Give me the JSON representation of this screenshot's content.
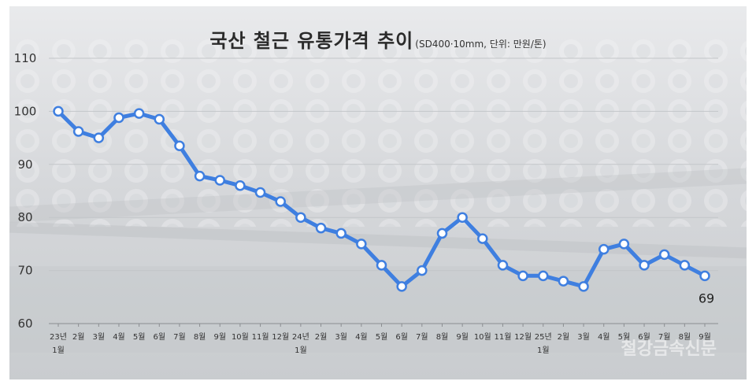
{
  "chart_data": {
    "type": "line",
    "title": "국산 철근 유통가격 추이",
    "subtitle": "(SD400·10mm, 단위: 만원/톤)",
    "ylim": [
      60,
      110
    ],
    "yticks": [
      60,
      70,
      80,
      90,
      100,
      110
    ],
    "grid": true,
    "line_color": "#3f7fe0",
    "marker_fill": "#ffffff",
    "categories": [
      [
        "23년",
        "1월"
      ],
      [
        "2월"
      ],
      [
        "3월"
      ],
      [
        "4월"
      ],
      [
        "5월"
      ],
      [
        "6월"
      ],
      [
        "7월"
      ],
      [
        "8월"
      ],
      [
        "9월"
      ],
      [
        "10월"
      ],
      [
        "11월"
      ],
      [
        "12월"
      ],
      [
        "24년",
        "1월"
      ],
      [
        "2월"
      ],
      [
        "3월"
      ],
      [
        "4월"
      ],
      [
        "5월"
      ],
      [
        "6월"
      ],
      [
        "7월"
      ],
      [
        "8월"
      ],
      [
        "9월"
      ],
      [
        "10월"
      ],
      [
        "11월"
      ],
      [
        "12월"
      ],
      [
        "25년",
        "1월"
      ],
      [
        "2월"
      ],
      [
        "3월"
      ],
      [
        "4월"
      ],
      [
        "5월"
      ],
      [
        "6월"
      ],
      [
        "7월"
      ],
      [
        "8월"
      ],
      [
        "9월"
      ]
    ],
    "series": [
      {
        "values": [
          100,
          96.2,
          95,
          98.8,
          99.6,
          98.5,
          93.5,
          87.8,
          87,
          86,
          84.7,
          83,
          80,
          78,
          77,
          75,
          71,
          67,
          70,
          77,
          80,
          76,
          71,
          69,
          69,
          68,
          67,
          74,
          75,
          71,
          73,
          71,
          69
        ]
      }
    ],
    "annotations": [
      {
        "index": 32,
        "text": "69"
      }
    ]
  },
  "watermark": "철강금속신문"
}
